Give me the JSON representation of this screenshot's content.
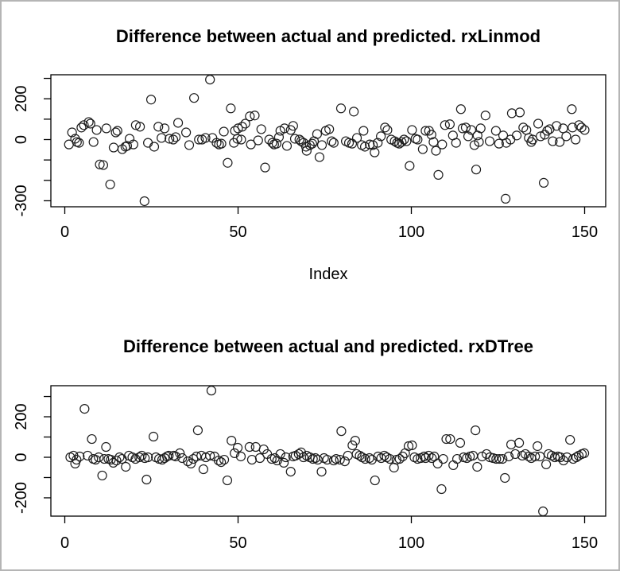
{
  "window": {
    "background_color": "#ffffff",
    "frame_border_color": "#b5b5b5",
    "ink_color": "#000000"
  },
  "chart_data": [
    {
      "type": "scatter",
      "title": "Difference between actual and predicted. rxLinmod",
      "xlabel": "Index",
      "ylabel": "",
      "marker": "open-circle",
      "grid": false,
      "legend": "none",
      "xlim": [
        -5,
        158
      ],
      "ylim": [
        -326,
        318
      ],
      "x_ticks": [
        0,
        50,
        100,
        150
      ],
      "x_tick_labels": [
        "0",
        "50",
        "100",
        "150"
      ],
      "y_ticks": [
        300,
        200,
        100,
        0,
        -100,
        -200,
        -300
      ],
      "y_tick_labels_shown": [
        {
          "value": 200,
          "label": "200"
        },
        {
          "value": 0,
          "label": "0"
        },
        {
          "value": -300,
          "label": "-300"
        }
      ],
      "x": [
        1.2,
        2.1,
        3,
        3.5,
        4.1,
        4.8,
        5.5,
        6.9,
        7.4,
        8.3,
        9.2,
        10.1,
        11.1,
        12,
        13.1,
        14.1,
        14.7,
        15.2,
        16.6,
        17.5,
        18,
        18.7,
        19.8,
        20.5,
        21.7,
        23,
        24,
        24.9,
        25.8,
        27,
        27.9,
        28.8,
        30.2,
        31.3,
        32,
        32.7,
        35,
        35.9,
        37.3,
        38.7,
        39.6,
        40.6,
        41.9,
        42.6,
        43.8,
        44.5,
        45.2,
        45.9,
        47,
        47.9,
        48.8,
        49.1,
        49.8,
        50,
        50.9,
        51.2,
        52.1,
        53.4,
        53.7,
        54.8,
        55.8,
        56.7,
        57.8,
        59,
        59.9,
        60.4,
        61.1,
        61.8,
        62.2,
        63.4,
        64.1,
        65.2,
        65.9,
        66.4,
        67.7,
        68.2,
        68.9,
        69.6,
        69.8,
        70.7,
        71.4,
        71.9,
        72.8,
        73.5,
        74.2,
        75.3,
        76.3,
        77,
        77.6,
        79.7,
        81.1,
        82,
        82.9,
        83.4,
        84.3,
        85.7,
        86.2,
        86.6,
        88,
        88.9,
        89.4,
        90.3,
        91.2,
        92.4,
        93.1,
        94.2,
        95.2,
        95.9,
        96.5,
        97.2,
        97.9,
        98.6,
        99.5,
        100.2,
        101.2,
        101.8,
        103.3,
        104.1,
        105.1,
        105.8,
        106.4,
        107.1,
        107.8,
        108.9,
        109.7,
        111.1,
        112,
        112.9,
        114.3,
        114.8,
        115.7,
        116.4,
        117.3,
        118.2,
        118.7,
        119.1,
        119.5,
        120,
        121.4,
        122.6,
        124.4,
        125.3,
        126.5,
        127.2,
        127.4,
        128.6,
        129,
        130.4,
        131.3,
        132.3,
        133.2,
        133.9,
        134.6,
        135,
        136.6,
        137.3,
        138.2,
        138.5,
        139.2,
        139.9,
        140.8,
        141.9,
        142.8,
        143.8,
        144.7,
        146.3,
        146.5,
        147.4,
        148.4,
        149.1,
        150
      ],
      "y": [
        -24,
        35,
        4,
        -12,
        -16,
        59,
        71,
        86,
        78,
        -12,
        47,
        -122,
        -125,
        55,
        -220,
        -39,
        35,
        43,
        -47,
        -35,
        -31,
        4,
        -24,
        71,
        63,
        -302,
        -16,
        196,
        -35,
        63,
        8,
        55,
        4,
        0,
        12,
        82,
        35,
        -27,
        204,
        0,
        0,
        8,
        294,
        8,
        -16,
        -24,
        -20,
        39,
        -114,
        153,
        -16,
        43,
        4,
        55,
        0,
        63,
        78,
        114,
        -24,
        118,
        -4,
        51,
        -137,
        0,
        -16,
        -24,
        -20,
        12,
        43,
        55,
        -31,
        47,
        67,
        4,
        0,
        -8,
        -16,
        -35,
        -55,
        -27,
        -20,
        -8,
        27,
        -86,
        -27,
        43,
        51,
        -8,
        -16,
        153,
        -8,
        -16,
        -20,
        137,
        8,
        -27,
        43,
        -35,
        -24,
        -27,
        -63,
        -16,
        16,
        59,
        47,
        0,
        -8,
        -16,
        -20,
        -12,
        0,
        -8,
        -129,
        47,
        4,
        0,
        -47,
        43,
        43,
        24,
        -12,
        -55,
        -173,
        -24,
        71,
        75,
        20,
        -16,
        149,
        55,
        59,
        16,
        47,
        -27,
        -147,
        20,
        -12,
        55,
        118,
        -8,
        43,
        -20,
        20,
        -290,
        -16,
        0,
        129,
        20,
        133,
        59,
        47,
        8,
        -12,
        0,
        78,
        16,
        -212,
        24,
        43,
        51,
        -8,
        67,
        -12,
        55,
        16,
        149,
        59,
        0,
        71,
        59,
        47
      ]
    },
    {
      "type": "scatter",
      "title": "Difference between actual and predicted. rxDTree",
      "xlabel": "",
      "ylabel": "",
      "marker": "open-circle",
      "grid": false,
      "legend": "none",
      "xlim": [
        -5,
        158
      ],
      "ylim": [
        -291,
        353
      ],
      "x_ticks": [
        0,
        50,
        100,
        150
      ],
      "x_tick_labels": [
        "0",
        "50",
        "100",
        "150"
      ],
      "y_ticks": [
        300,
        200,
        100,
        0,
        -100,
        -200
      ],
      "y_tick_labels_shown": [
        {
          "value": 200,
          "label": "200"
        },
        {
          "value": 0,
          "label": "0"
        },
        {
          "value": -200,
          "label": "-200"
        }
      ],
      "x": [
        1.6,
        2.5,
        3,
        3.4,
        4.3,
        5.7,
        6.6,
        7.8,
        8.2,
        8.9,
        9.8,
        10.8,
        11.4,
        11.9,
        12.6,
        13.3,
        14,
        14.9,
        15.8,
        16.5,
        17.6,
        18.5,
        19.5,
        20.4,
        21.5,
        22.2,
        23.1,
        23.6,
        24,
        25.6,
        26.3,
        27.2,
        28.1,
        28.8,
        29.5,
        30,
        31.4,
        32,
        33.2,
        33.9,
        35.5,
        36.4,
        37.1,
        38,
        38.4,
        39.4,
        40,
        40.7,
        41.9,
        42.3,
        43.2,
        44.4,
        45.1,
        46,
        46.9,
        48.1,
        49,
        49.9,
        50.8,
        53.3,
        54,
        55.1,
        56.3,
        57.4,
        58.4,
        59.7,
        60.6,
        61.3,
        62.2,
        63.2,
        63.8,
        65.2,
        65.9,
        66.6,
        67.5,
        68.2,
        68.9,
        69.8,
        70.7,
        71.6,
        72.3,
        73,
        74.1,
        74.8,
        75.7,
        77.6,
        78.3,
        79.4,
        79.8,
        80.8,
        81.7,
        83,
        83.8,
        84.2,
        85.1,
        85.8,
        86.7,
        87.9,
        88.6,
        89.5,
        90.4,
        91.3,
        92.2,
        92.9,
        93.8,
        95,
        95.7,
        96.6,
        97.5,
        98.2,
        99.2,
        100.2,
        100.9,
        101.8,
        102.7,
        103.7,
        104.1,
        105,
        105.9,
        106.6,
        107.6,
        108.7,
        109.2,
        110.1,
        111.2,
        112.1,
        113.2,
        114.1,
        115.1,
        116,
        116.9,
        117.8,
        118.5,
        119,
        120.4,
        121.7,
        122.7,
        123.6,
        124.5,
        125.4,
        126.3,
        127,
        128.1,
        128.8,
        130,
        131.1,
        132,
        132.9,
        133.9,
        134.6,
        135.7,
        136.4,
        137.1,
        138,
        138.9,
        139.6,
        140.5,
        141.4,
        142.3,
        143,
        143.9,
        144.9,
        145.8,
        146.7,
        147.6,
        148.3,
        149.2,
        149.9
      ],
      "y": [
        0,
        8,
        -31,
        -12,
        4,
        239,
        8,
        90,
        -8,
        -12,
        0,
        -90,
        -8,
        51,
        -8,
        -12,
        -27,
        -16,
        0,
        -8,
        -47,
        8,
        0,
        -8,
        0,
        8,
        -4,
        -110,
        0,
        102,
        0,
        -8,
        -12,
        -4,
        4,
        8,
        8,
        4,
        20,
        -4,
        -20,
        -31,
        -8,
        4,
        133,
        8,
        -59,
        0,
        8,
        329,
        4,
        -16,
        -24,
        -12,
        -114,
        82,
        20,
        47,
        4,
        51,
        -12,
        51,
        -4,
        39,
        16,
        -8,
        -4,
        -16,
        16,
        -27,
        0,
        -71,
        4,
        8,
        16,
        24,
        0,
        8,
        0,
        -8,
        -4,
        -12,
        -71,
        -4,
        -12,
        -16,
        -8,
        -12,
        129,
        -20,
        8,
        59,
        82,
        16,
        8,
        0,
        -8,
        -4,
        -12,
        -114,
        4,
        -4,
        8,
        0,
        -8,
        -51,
        -12,
        -8,
        4,
        20,
        55,
        59,
        0,
        -8,
        -4,
        4,
        -4,
        8,
        -4,
        4,
        -31,
        -157,
        -8,
        90,
        90,
        -39,
        -8,
        71,
        0,
        -4,
        4,
        8,
        133,
        -47,
        4,
        16,
        0,
        -4,
        -8,
        -8,
        -8,
        -102,
        4,
        63,
        16,
        71,
        8,
        16,
        4,
        -4,
        4,
        55,
        4,
        -267,
        -35,
        16,
        8,
        0,
        4,
        0,
        -16,
        0,
        86,
        -8,
        0,
        8,
        16,
        20
      ]
    }
  ]
}
